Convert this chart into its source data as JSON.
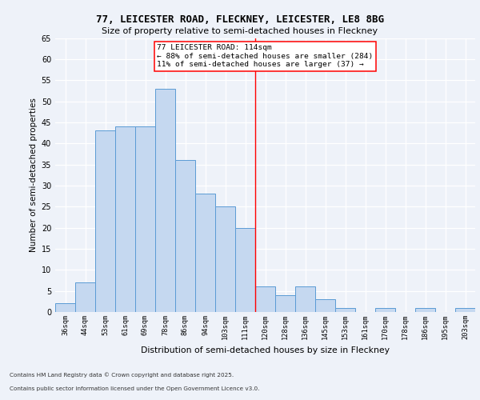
{
  "title1": "77, LEICESTER ROAD, FLECKNEY, LEICESTER, LE8 8BG",
  "title2": "Size of property relative to semi-detached houses in Fleckney",
  "xlabel": "Distribution of semi-detached houses by size in Fleckney",
  "ylabel": "Number of semi-detached properties",
  "categories": [
    "36sqm",
    "44sqm",
    "53sqm",
    "61sqm",
    "69sqm",
    "78sqm",
    "86sqm",
    "94sqm",
    "103sqm",
    "111sqm",
    "120sqm",
    "128sqm",
    "136sqm",
    "145sqm",
    "153sqm",
    "161sqm",
    "170sqm",
    "178sqm",
    "186sqm",
    "195sqm",
    "203sqm"
  ],
  "values": [
    2,
    7,
    43,
    44,
    44,
    53,
    36,
    28,
    25,
    20,
    6,
    4,
    6,
    3,
    1,
    0,
    1,
    0,
    1,
    0,
    1
  ],
  "bar_color": "#c5d8f0",
  "bar_edge_color": "#5b9bd5",
  "vline_index": 9.5,
  "annotation_title": "77 LEICESTER ROAD: 114sqm",
  "annotation_line1": "← 88% of semi-detached houses are smaller (284)",
  "annotation_line2": "11% of semi-detached houses are larger (37) →",
  "footer1": "Contains HM Land Registry data © Crown copyright and database right 2025.",
  "footer2": "Contains public sector information licensed under the Open Government Licence v3.0.",
  "bg_color": "#eef2f9",
  "grid_color": "#ffffff",
  "ylim": [
    0,
    65
  ],
  "yticks": [
    0,
    5,
    10,
    15,
    20,
    25,
    30,
    35,
    40,
    45,
    50,
    55,
    60,
    65
  ]
}
